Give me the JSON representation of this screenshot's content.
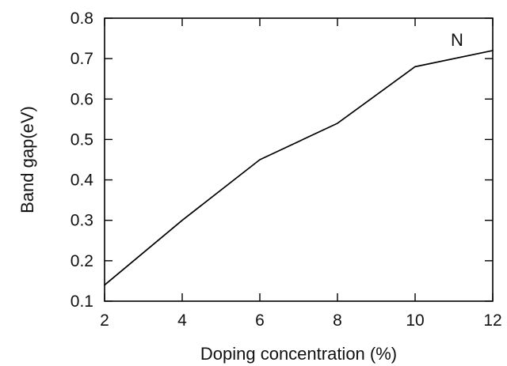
{
  "chart_data": {
    "type": "line",
    "title": "",
    "xlabel": "Doping concentration (%)",
    "ylabel": "Band gap(eV)",
    "xlim": [
      2,
      12
    ],
    "ylim": [
      0.1,
      0.8
    ],
    "x_ticks": [
      2,
      4,
      6,
      8,
      10,
      12
    ],
    "y_ticks": [
      0.1,
      0.2,
      0.3,
      0.4,
      0.5,
      0.6,
      0.7,
      0.8
    ],
    "grid": false,
    "legend": "none",
    "annotation": "N",
    "colors": {
      "line": "#000000",
      "axes": "#000000",
      "text": "#111111"
    },
    "series": [
      {
        "x": [
          2,
          4,
          6,
          8,
          10,
          12
        ],
        "y": [
          0.14,
          0.3,
          0.45,
          0.54,
          0.68,
          0.72
        ]
      }
    ]
  }
}
